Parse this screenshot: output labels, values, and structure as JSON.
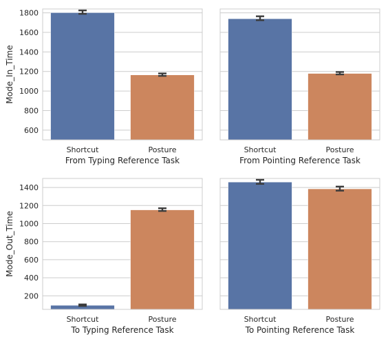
{
  "colors": {
    "series_a": "#5874a5",
    "series_b": "#cc865e",
    "grid": "#cccccc",
    "frame": "#cccccc",
    "errorbar": "#3b3b3b"
  },
  "chart_data": [
    {
      "type": "bar",
      "categories": [
        "Shortcut",
        "Posture"
      ],
      "values": [
        1802,
        1165
      ],
      "errors": [
        [
          1790,
          1825
        ],
        [
          1155,
          1180
        ]
      ],
      "xlabel": "From Typing Reference Task",
      "ylabel": "Mode_In_Time",
      "ylim": [
        500,
        1840
      ],
      "yticks": [
        600,
        800,
        1000,
        1200,
        1400,
        1600,
        1800
      ],
      "tick_labels_shown": true,
      "grid": true,
      "legend": "none"
    },
    {
      "type": "bar",
      "categories": [
        "Shortcut",
        "Posture"
      ],
      "values": [
        1740,
        1180
      ],
      "errors": [
        [
          1725,
          1765
        ],
        [
          1170,
          1195
        ]
      ],
      "xlabel": "From Pointing Reference Task",
      "ylabel": "",
      "ylim": [
        500,
        1840
      ],
      "yticks": [
        600,
        800,
        1000,
        1200,
        1400,
        1600,
        1800
      ],
      "tick_labels_shown": false,
      "grid": true,
      "legend": "none"
    },
    {
      "type": "bar",
      "categories": [
        "Shortcut",
        "Posture"
      ],
      "values": [
        95,
        1152
      ],
      "errors": [
        [
          88,
          105
        ],
        [
          1140,
          1170
        ]
      ],
      "xlabel": "To Typing Reference Task",
      "ylabel": "Mode_Out_Time",
      "ylim": [
        50,
        1500
      ],
      "yticks": [
        200,
        400,
        600,
        800,
        1000,
        1200,
        1400
      ],
      "tick_labels_shown": true,
      "grid": true,
      "legend": "none"
    },
    {
      "type": "bar",
      "categories": [
        "Shortcut",
        "Posture"
      ],
      "values": [
        1460,
        1385
      ],
      "errors": [
        [
          1440,
          1485
        ],
        [
          1365,
          1410
        ]
      ],
      "xlabel": "To Pointing Reference Task",
      "ylabel": "",
      "ylim": [
        50,
        1500
      ],
      "yticks": [
        200,
        400,
        600,
        800,
        1000,
        1200,
        1400
      ],
      "tick_labels_shown": false,
      "grid": true,
      "legend": "none"
    }
  ]
}
